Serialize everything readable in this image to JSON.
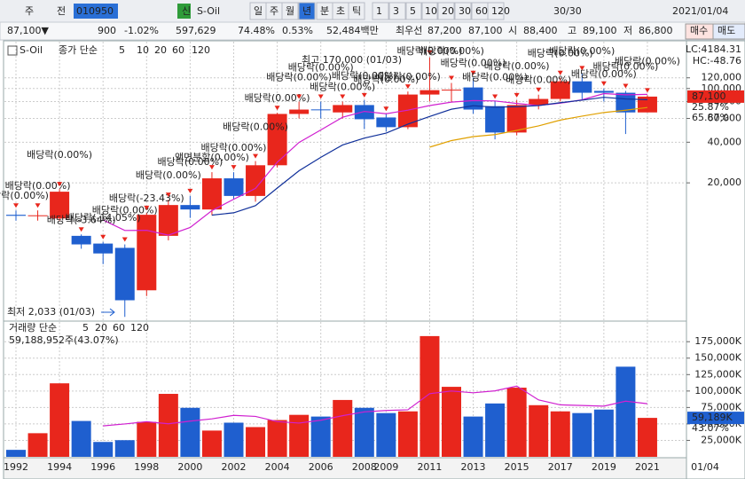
{
  "toolbar": {
    "items": [
      "주",
      "전",
      "010950",
      "신",
      "S-Oil",
      "일",
      "주",
      "월",
      "년",
      "분",
      "초",
      "틱",
      "1",
      "3",
      "5",
      "10",
      "20",
      "30",
      "60",
      "120",
      "30/30",
      "2021/01/04"
    ]
  },
  "quote_bar": {
    "items": [
      "87,100▼",
      "900",
      "-1.02%",
      "597,629",
      "74.48%",
      "0.53%",
      "52,484백만",
      "최우선",
      "87,200",
      "87,100",
      "시",
      "88,400",
      "고",
      "89,100",
      "저",
      "86,800",
      "매수",
      "매도"
    ]
  },
  "chart_data": [
    {
      "type": "candlestick",
      "legend_name": "S-Oil",
      "ma_label": "종가 단순",
      "log_scale": true,
      "grid": true,
      "up_color": "#e8261c",
      "down_color": "#1f5fcf",
      "open": [
        11600,
        11400,
        10900,
        8100,
        7100,
        6600,
        3200,
        8100,
        13700,
        12700,
        21600,
        16000,
        27000,
        64800,
        70000,
        66500,
        75400,
        61000,
        51700,
        90200,
        97000,
        101800,
        74000,
        47200,
        75400,
        83700,
        113000,
        96000,
        93000,
        66500
      ],
      "high": [
        12500,
        12500,
        18000,
        8300,
        7300,
        7000,
        12000,
        15000,
        16000,
        24000,
        24000,
        29000,
        66000,
        80000,
        80000,
        80000,
        82000,
        65000,
        95000,
        170000,
        110000,
        120000,
        80000,
        82000,
        90000,
        120000,
        130000,
        100000,
        96000,
        89100
      ],
      "low": [
        10500,
        10500,
        10500,
        6500,
        5000,
        2033,
        2900,
        7500,
        11000,
        11500,
        15000,
        14500,
        26000,
        60000,
        60000,
        60000,
        50000,
        48000,
        50000,
        80000,
        80000,
        65000,
        42000,
        45000,
        70000,
        80000,
        82000,
        80000,
        46000,
        66500
      ],
      "close": [
        11400,
        11500,
        17200,
        7000,
        6000,
        2700,
        11600,
        13700,
        12700,
        21600,
        16000,
        27000,
        64800,
        69800,
        69000,
        75400,
        59200,
        51700,
        90200,
        97200,
        98000,
        69800,
        47200,
        75400,
        83700,
        113000,
        93000,
        93000,
        66500,
        87100
      ],
      "ma_series": [
        {
          "name": "5",
          "color": "#d020d0",
          "values": [
            null,
            null,
            null,
            null,
            10620,
            8880,
            8900,
            8200,
            9340,
            12460,
            15120,
            18200,
            28420,
            39840,
            49320,
            61200,
            67640,
            65020,
            69100,
            74740,
            79260,
            81380,
            80880,
            77520,
            74820,
            77820,
            82460,
            91640,
            89840,
            90520
          ]
        },
        {
          "name": "10",
          "color": "#10309a",
          "values": [
            null,
            null,
            null,
            null,
            null,
            null,
            null,
            null,
            null,
            11540,
            12000,
            13550,
            18310,
            24590,
            30890,
            38160,
            42920,
            46720,
            54470,
            62030,
            70230,
            74510,
            72750,
            73310,
            74780,
            78540,
            81920,
            86050,
            83680,
            82670
          ]
        },
        {
          "name": "20",
          "color": "#e0a000",
          "values": [
            null,
            null,
            null,
            null,
            null,
            null,
            null,
            null,
            null,
            null,
            null,
            null,
            null,
            null,
            null,
            null,
            null,
            null,
            null,
            36785,
            41115,
            44030,
            45530,
            48950,
            52835,
            58350,
            62420,
            66385,
            69075,
            72350
          ]
        }
      ],
      "inactive_legend": [
        {
          "name": "60",
          "color": "#20a020"
        },
        {
          "name": "120",
          "color": "#888888"
        }
      ],
      "annotations": [
        "배당락(0.00%)",
        "배당락(0.00%)",
        "배당락(0.00%)",
        "배당락(-3.64%)",
        "배당락(-14.05%)",
        "배당락(0.00%)",
        "배당락(-23.43%)",
        "배당락(0.00%)",
        "배당락(0.00%)",
        "액면분할(0.00%)",
        "배당락(0.00%)",
        "배당락(0.00%)",
        "배당락(0.00%)",
        "배당락(0.00%)",
        "배당락(0.00%)",
        "배당락(0.00%)",
        "배당락(0.00%)",
        "배당락(0.00%)",
        "배당락(0.00%)",
        "배당락(0.00%)",
        "배당락(0.00%)",
        "배당락(0.00%)",
        "배당락(0.00%)",
        "배당락(0.00%)",
        "배당락(0.00%)",
        "배당락(0.00%)",
        "배당락(0.00%)",
        "배당락(0.00%)",
        "배당락(0.00%)",
        "배당락(0.00%)"
      ],
      "high_label": "최고 170,000 (01/03)",
      "low_label": "최저 2,033 (01/03)",
      "lc_label": "LC:4184.31",
      "hc_label": "HC:-48.76",
      "last_price": {
        "value": 87100,
        "label": "87,100"
      },
      "pct_labels": [
        "25.87%",
        "65.87%"
      ],
      "ylim": [
        1950,
        206000
      ],
      "yticks": [
        {
          "value": 20000,
          "label": "20,000"
        },
        {
          "value": 40000,
          "label": "40,000"
        },
        {
          "value": 60000,
          "label": "60,000"
        },
        {
          "value": 80000,
          "label": "80,000"
        },
        {
          "value": 100000,
          "label": "100,000"
        },
        {
          "value": 120000,
          "label": "120,000"
        }
      ]
    },
    {
      "type": "bar",
      "legend_name": "거래량 단순",
      "grid": true,
      "categories": [
        "1992",
        null,
        "1994",
        null,
        "1996",
        null,
        "1998",
        null,
        "2000",
        null,
        "2002",
        null,
        "2004",
        null,
        "2006",
        null,
        "2008",
        "2009",
        null,
        "2011",
        null,
        "2013",
        null,
        "2015",
        null,
        "2017",
        null,
        "2019",
        null,
        "2021"
      ],
      "x_end_label": "01/04",
      "values": [
        10600,
        35900,
        111700,
        54500,
        22600,
        25300,
        53200,
        95700,
        74500,
        39900,
        51900,
        45200,
        55900,
        63800,
        61200,
        86400,
        74500,
        66500,
        69100,
        183500,
        106400,
        61200,
        81100,
        105100,
        78500,
        69100,
        66500,
        71800,
        137000,
        59189
      ],
      "ma_series": [
        {
          "name": "5",
          "color": "#d020d0",
          "values": [
            null,
            null,
            null,
            null,
            47060,
            50000,
            53460,
            50260,
            54260,
            57720,
            63040,
            61440,
            53480,
            51340,
            55600,
            62500,
            68360,
            70480,
            71540,
            96000,
            100000,
            97340,
            100260,
            107460,
            86460,
            79000,
            78060,
            77000,
            84580,
            80718
          ]
        }
      ],
      "inactive_legend": [
        {
          "name": "20",
          "color": "#e0a000"
        },
        {
          "name": "60",
          "color": "#20a020"
        },
        {
          "name": "120",
          "color": "#888888"
        }
      ],
      "info_label": "59,188,952주(43.07%)",
      "last_value": {
        "value": 59189,
        "label": "59,189K"
      },
      "pct_label": "43.07%",
      "ylim": [
        0,
        195500
      ],
      "yticks": [
        {
          "value": 25000,
          "label": "25,000K"
        },
        {
          "value": 50000,
          "label": "50,000K"
        },
        {
          "value": 75000,
          "label": "75,000K"
        },
        {
          "value": 100000,
          "label": "100,000K"
        },
        {
          "value": 125000,
          "label": "125,000K"
        },
        {
          "value": 150000,
          "label": "150,000K"
        },
        {
          "value": 175000,
          "label": "175,000K"
        }
      ]
    }
  ]
}
